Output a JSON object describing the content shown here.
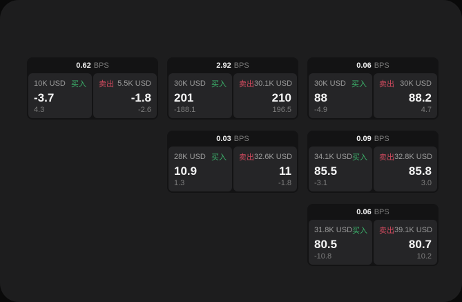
{
  "app": {
    "bps_suffix": "BPS",
    "buy_label": "买入",
    "sell_label": "卖出"
  },
  "colors": {
    "outer_background": "#0a0a0a",
    "surface_background": "#1d1d1e",
    "card_background": "#131314",
    "panel_background": "#252527",
    "buy_green": "#3cb46c",
    "sell_red": "#cf4a5e",
    "value_text": "#f4f4f4",
    "muted_text": "#7d7d7d",
    "amount_text": "#9c9c9c"
  },
  "cards": [
    {
      "bps": "0.62",
      "buy": {
        "amount": "10K USD",
        "value": "-3.7",
        "sub": "4.3"
      },
      "sell": {
        "amount": "5.5K USD",
        "value": "-1.8",
        "sub": "-2.6"
      }
    },
    {
      "bps": "2.92",
      "buy": {
        "amount": "30K USD",
        "value": "201",
        "sub": "-188.1"
      },
      "sell": {
        "amount": "30.1K USD",
        "value": "210",
        "sub": "196.5"
      }
    },
    {
      "bps": "0.06",
      "buy": {
        "amount": "30K USD",
        "value": "88",
        "sub": "-4.9"
      },
      "sell": {
        "amount": "30K USD",
        "value": "88.2",
        "sub": "4.7"
      }
    },
    {
      "bps": "0.03",
      "buy": {
        "amount": "28K USD",
        "value": "10.9",
        "sub": "1.3"
      },
      "sell": {
        "amount": "32.6K USD",
        "value": "11",
        "sub": "-1.8"
      }
    },
    {
      "bps": "0.09",
      "buy": {
        "amount": "34.1K USD",
        "value": "85.5",
        "sub": "-3.1"
      },
      "sell": {
        "amount": "32.8K USD",
        "value": "85.8",
        "sub": "3.0"
      }
    },
    {
      "bps": "0.06",
      "buy": {
        "amount": "31.8K USD",
        "value": "80.5",
        "sub": "-10.8"
      },
      "sell": {
        "amount": "39.1K USD",
        "value": "80.7",
        "sub": "10.2"
      }
    }
  ]
}
